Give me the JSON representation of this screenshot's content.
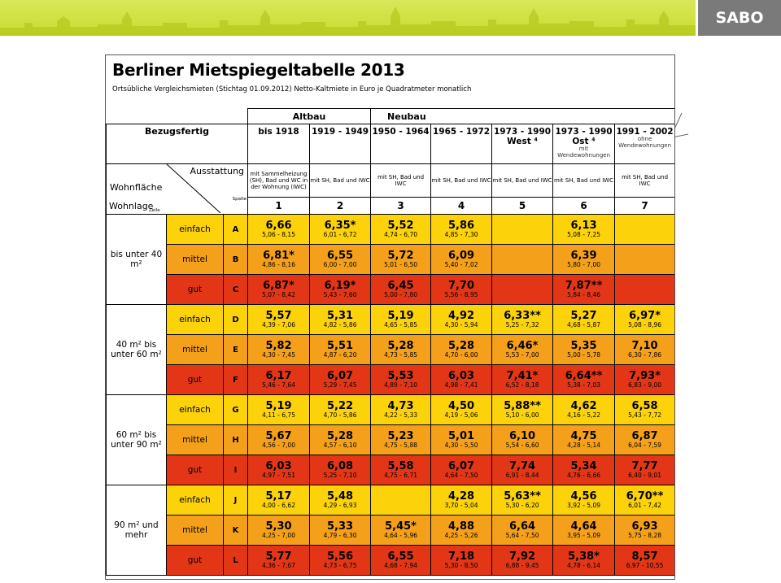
{
  "header": {
    "logo": "SABO",
    "colors": {
      "banner": "#c6dc2e",
      "logo_box": "#7a7a7a",
      "einfach": "#fcd20a",
      "mittel": "#f5a01a",
      "gut": "#e23617"
    }
  },
  "doc": {
    "title": "Berliner Mietspiegeltabelle 2013",
    "subtitle": "Ortsübliche Vergleichsmieten (Stichtag 01.09.2012) Netto-Kaltmiete in Euro je Quadratmeter monatlich",
    "group_altbau": "Altbau",
    "group_neubau": "Neubau",
    "bezugsfertig": "Bezugsfertig",
    "ausstattung": "Ausstattung",
    "wohnflaeche": "Wohnfläche",
    "wohnlage": "Wohnlage",
    "spalte": "Spalte",
    "zeile": "Zeile",
    "columns": [
      {
        "year": "bis 1918",
        "note": "",
        "ausst": "mit Sammelheizung (SH), Bad und WC in der Wohnung (IWC)",
        "num": "1"
      },
      {
        "year": "1919 - 1949",
        "note": "",
        "ausst": "mit SH, Bad und IWC",
        "num": "2"
      },
      {
        "year": "1950 - 1964",
        "note": "",
        "ausst": "mit SH, Bad und IWC",
        "num": "3"
      },
      {
        "year": "1965 - 1972",
        "note": "",
        "ausst": "mit SH, Bad und IWC",
        "num": "4"
      },
      {
        "year": "1973 - 1990 West ⁴",
        "note": "",
        "ausst": "mit SH, Bad und IWC",
        "num": "5"
      },
      {
        "year": "1973 - 1990 Ost ⁴",
        "note": "mit Wendewohnungen",
        "ausst": "mit SH, Bad und IWC",
        "num": "6"
      },
      {
        "year": "1991 - 2002",
        "note": "ohne Wendewohnungen",
        "ausst": "mit SH, Bad und IWC",
        "num": "7"
      }
    ],
    "groups": [
      {
        "area": "bis unter 40 m²",
        "rows": [
          {
            "lage": "einfach",
            "letter": "A",
            "color": "y",
            "cells": [
              {
                "v": "6,66",
                "r": "5,06 - 8,15"
              },
              {
                "v": "6,35*",
                "r": "6,01 - 6,72"
              },
              {
                "v": "5,52",
                "r": "4,74 - 6,70"
              },
              {
                "v": "5,86",
                "r": "4,85 - 7,30"
              },
              {
                "v": "",
                "r": ""
              },
              {
                "v": "6,13",
                "r": "5,08 - 7,25"
              },
              {
                "v": "",
                "r": ""
              }
            ]
          },
          {
            "lage": "mittel",
            "letter": "B",
            "color": "o",
            "cells": [
              {
                "v": "6,81*",
                "r": "4,86 - 8,16"
              },
              {
                "v": "6,55",
                "r": "6,00 - 7,00"
              },
              {
                "v": "5,72",
                "r": "5,01 - 6,50"
              },
              {
                "v": "6,09",
                "r": "5,40 - 7,02"
              },
              {
                "v": "",
                "r": ""
              },
              {
                "v": "6,39",
                "r": "5,80 - 7,00"
              },
              {
                "v": "",
                "r": ""
              }
            ]
          },
          {
            "lage": "gut",
            "letter": "C",
            "color": "r",
            "cells": [
              {
                "v": "6,87*",
                "r": "5,07 - 8,42"
              },
              {
                "v": "6,19*",
                "r": "5,43 - 7,60"
              },
              {
                "v": "6,45",
                "r": "5,00 - 7,80"
              },
              {
                "v": "7,70",
                "r": "5,56 - 8,95"
              },
              {
                "v": "",
                "r": ""
              },
              {
                "v": "7,87**",
                "r": "5,84 - 8,46"
              },
              {
                "v": "",
                "r": ""
              }
            ]
          }
        ]
      },
      {
        "area": "40 m² bis unter 60 m²",
        "rows": [
          {
            "lage": "einfach",
            "letter": "D",
            "color": "y",
            "cells": [
              {
                "v": "5,57",
                "r": "4,39 - 7,06"
              },
              {
                "v": "5,31",
                "r": "4,82 - 5,86"
              },
              {
                "v": "5,19",
                "r": "4,65 - 5,85"
              },
              {
                "v": "4,92",
                "r": "4,30 - 5,94"
              },
              {
                "v": "6,33**",
                "r": "5,25 - 7,32"
              },
              {
                "v": "5,27",
                "r": "4,68 - 5,87"
              },
              {
                "v": "6,97*",
                "r": "5,08 - 8,96"
              }
            ]
          },
          {
            "lage": "mittel",
            "letter": "E",
            "color": "o",
            "cells": [
              {
                "v": "5,82",
                "r": "4,30 - 7,45"
              },
              {
                "v": "5,51",
                "r": "4,87 - 6,20"
              },
              {
                "v": "5,28",
                "r": "4,73 - 5,85"
              },
              {
                "v": "5,28",
                "r": "4,70 - 6,00"
              },
              {
                "v": "6,46*",
                "r": "5,53 - 7,00"
              },
              {
                "v": "5,35",
                "r": "5,00 - 5,78"
              },
              {
                "v": "7,10",
                "r": "6,30 - 7,86"
              }
            ]
          },
          {
            "lage": "gut",
            "letter": "F",
            "color": "r",
            "cells": [
              {
                "v": "6,17",
                "r": "5,46 - 7,64"
              },
              {
                "v": "6,07",
                "r": "5,29 - 7,45"
              },
              {
                "v": "5,53",
                "r": "4,89 - 7,10"
              },
              {
                "v": "6,03",
                "r": "4,98 - 7,41"
              },
              {
                "v": "7,41*",
                "r": "6,52 - 8,18"
              },
              {
                "v": "6,64**",
                "r": "5,38 - 7,03"
              },
              {
                "v": "7,93*",
                "r": "6,83 - 9,00"
              }
            ]
          }
        ]
      },
      {
        "area": "60 m² bis unter 90 m²",
        "rows": [
          {
            "lage": "einfach",
            "letter": "G",
            "color": "y",
            "cells": [
              {
                "v": "5,19",
                "r": "4,11 - 6,75"
              },
              {
                "v": "5,22",
                "r": "4,70 - 5,86"
              },
              {
                "v": "4,73",
                "r": "4,22 - 5,33"
              },
              {
                "v": "4,50",
                "r": "4,19 - 5,06"
              },
              {
                "v": "5,88**",
                "r": "5,10 - 6,00"
              },
              {
                "v": "4,62",
                "r": "4,16 - 5,22"
              },
              {
                "v": "6,58",
                "r": "5,43 - 7,72"
              }
            ]
          },
          {
            "lage": "mittel",
            "letter": "H",
            "color": "o",
            "cells": [
              {
                "v": "5,67",
                "r": "4,56 - 7,00"
              },
              {
                "v": "5,28",
                "r": "4,57 - 6,10"
              },
              {
                "v": "5,23",
                "r": "4,75 - 5,88"
              },
              {
                "v": "5,01",
                "r": "4,30 - 5,50"
              },
              {
                "v": "6,10",
                "r": "5,54 - 6,60"
              },
              {
                "v": "4,75",
                "r": "4,28 - 5,14"
              },
              {
                "v": "6,87",
                "r": "6,04 - 7,59"
              }
            ]
          },
          {
            "lage": "gut",
            "letter": "I",
            "color": "r",
            "cells": [
              {
                "v": "6,03",
                "r": "4,97 - 7,51"
              },
              {
                "v": "6,08",
                "r": "5,25 - 7,10"
              },
              {
                "v": "5,58",
                "r": "4,75 - 6,71"
              },
              {
                "v": "6,07",
                "r": "4,64 - 7,50"
              },
              {
                "v": "7,74",
                "r": "6,91 - 8,44"
              },
              {
                "v": "5,34",
                "r": "4,76 - 6,66"
              },
              {
                "v": "7,77",
                "r": "6,40 - 9,01"
              }
            ]
          }
        ]
      },
      {
        "area": "90 m² und mehr",
        "rows": [
          {
            "lage": "einfach",
            "letter": "J",
            "color": "y",
            "cells": [
              {
                "v": "5,17",
                "r": "4,00 - 6,62"
              },
              {
                "v": "5,48",
                "r": "4,29 - 6,93"
              },
              {
                "v": "",
                "r": ""
              },
              {
                "v": "4,28",
                "r": "3,70 - 5,04"
              },
              {
                "v": "5,63**",
                "r": "5,30 - 6,20"
              },
              {
                "v": "4,56",
                "r": "3,92 - 5,09"
              },
              {
                "v": "6,70**",
                "r": "6,01 - 7,42"
              }
            ]
          },
          {
            "lage": "mittel",
            "letter": "K",
            "color": "o",
            "cells": [
              {
                "v": "5,30",
                "r": "4,25 - 7,00"
              },
              {
                "v": "5,33",
                "r": "4,79 - 6,30"
              },
              {
                "v": "5,45*",
                "r": "4,64 - 5,96"
              },
              {
                "v": "4,88",
                "r": "4,25 - 5,26"
              },
              {
                "v": "6,64",
                "r": "5,64 - 7,50"
              },
              {
                "v": "4,64",
                "r": "3,95 - 5,09"
              },
              {
                "v": "6,93",
                "r": "5,75 - 8,28"
              }
            ]
          },
          {
            "lage": "gut",
            "letter": "L",
            "color": "r",
            "cells": [
              {
                "v": "5,77",
                "r": "4,36 - 7,67"
              },
              {
                "v": "5,56",
                "r": "4,73 - 6,75"
              },
              {
                "v": "6,55",
                "r": "4,68 - 7,94"
              },
              {
                "v": "7,18",
                "r": "5,30 - 8,50"
              },
              {
                "v": "7,92",
                "r": "6,88 - 9,45"
              },
              {
                "v": "5,38*",
                "r": "4,78 - 6,14"
              },
              {
                "v": "8,57",
                "r": "6,97 - 10,55"
              }
            ]
          }
        ]
      }
    ]
  }
}
